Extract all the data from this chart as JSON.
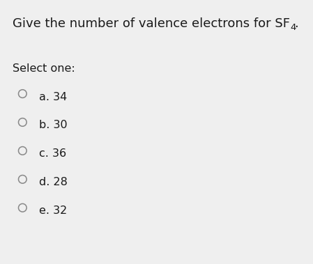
{
  "background_color": "#efefef",
  "title_main": "Give the number of valence electrons for SF",
  "title_sub": "4",
  "title_period": ".",
  "title_fontsize": 13.0,
  "title_sub_fontsize": 9.5,
  "select_label": "Select one:",
  "select_fontsize": 11.5,
  "options": [
    "a. 34",
    "b. 30",
    "c. 36",
    "d. 28",
    "e. 32"
  ],
  "option_fontsize": 11.5,
  "circle_color": "#888888",
  "text_color": "#1a1a1a",
  "fig_width": 4.49,
  "fig_height": 3.79,
  "dpi": 100
}
